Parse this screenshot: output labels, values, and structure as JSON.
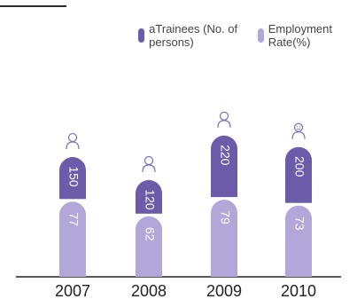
{
  "legend": {
    "trainees_label": "aTrainees (No. of persons)",
    "employment_label": "Employment Rate(%)"
  },
  "colors": {
    "trainees": "#6b5ba8",
    "employment": "#b3a6d9",
    "icon": "#7a6bb8",
    "baseline": "#222222"
  },
  "chart_data": {
    "type": "bar",
    "categories": [
      "2007",
      "2008",
      "2009",
      "2010"
    ],
    "series": [
      {
        "name": "aTrainees (No. of persons)",
        "values": [
          150,
          120,
          220,
          200
        ]
      },
      {
        "name": "Employment Rate(%)",
        "values": [
          77,
          62,
          79,
          73
        ]
      }
    ],
    "icons": [
      "person-icon",
      "smiley-person-icon"
    ],
    "grid": false,
    "legend_position": "top-right"
  }
}
